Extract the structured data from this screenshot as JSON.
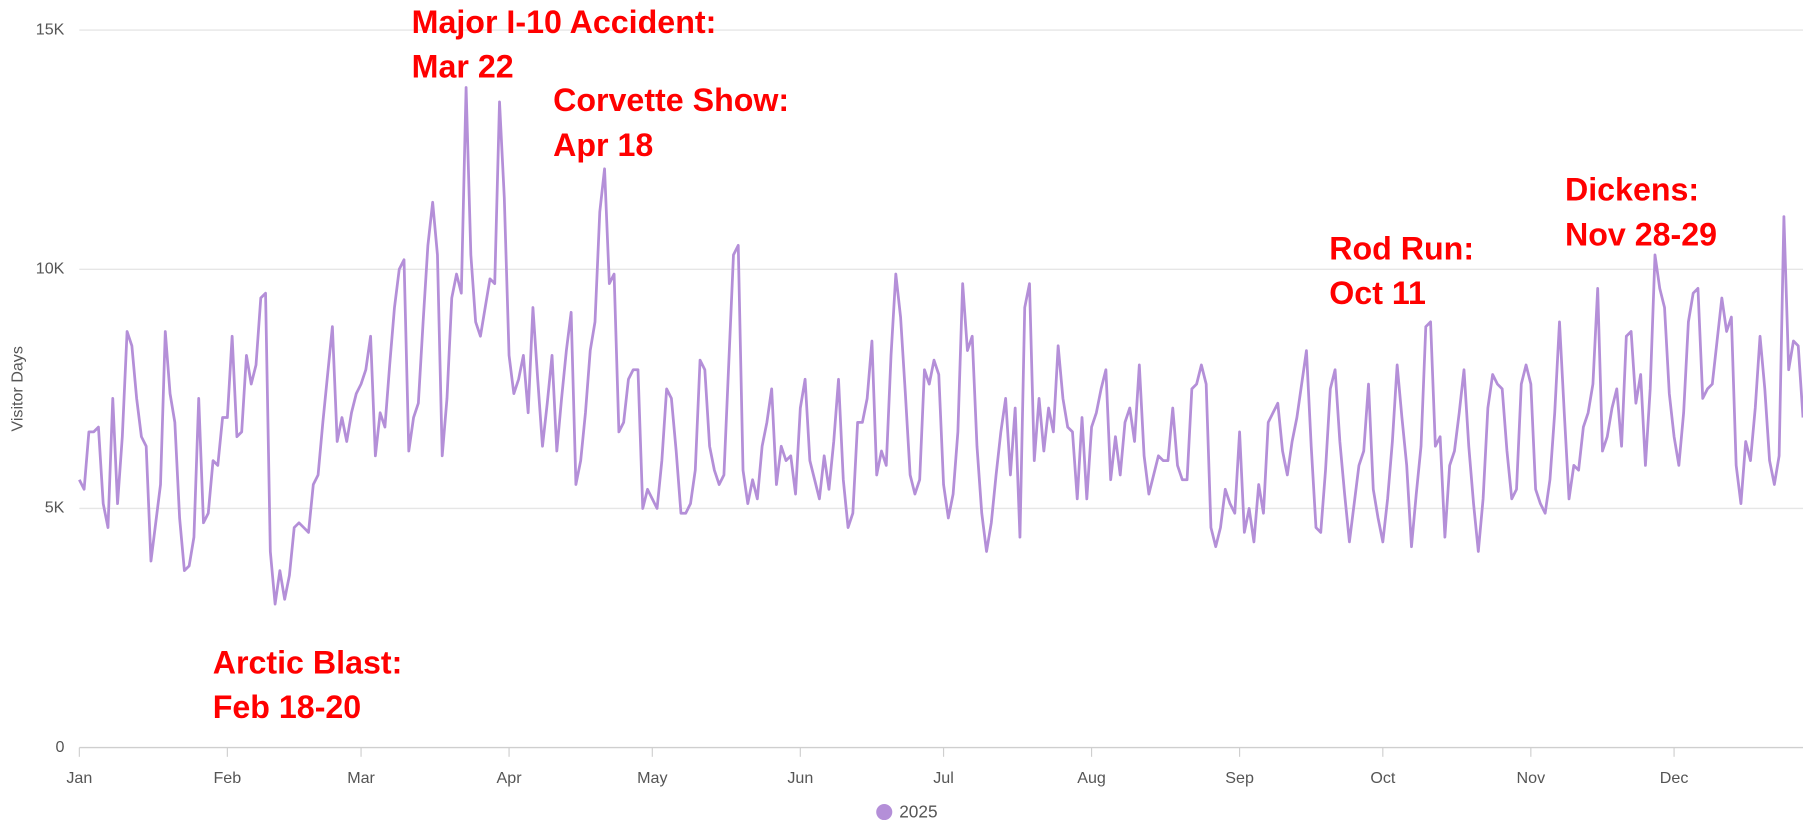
{
  "chart_data": {
    "type": "line",
    "y_label": "Visitor Days",
    "annotations": [
      {
        "lines": [
          "Major I-10 Accident:",
          "Mar 22"
        ]
      },
      {
        "lines": [
          "Corvette Show:",
          "Apr 18"
        ]
      },
      {
        "lines": [
          "Arctic Blast:",
          "Feb 18-20"
        ]
      },
      {
        "lines": [
          "Rod Run:",
          "Oct 11"
        ]
      },
      {
        "lines": [
          "Dickens:",
          "Nov 28-29"
        ]
      }
    ],
    "xlim": [
      0,
      361
    ],
    "xticks": [
      {
        "value": 0,
        "label": "Jan"
      },
      {
        "value": 31,
        "label": "Feb"
      },
      {
        "value": 59,
        "label": "Mar"
      },
      {
        "value": 90,
        "label": "Apr"
      },
      {
        "value": 120,
        "label": "May"
      },
      {
        "value": 151,
        "label": "Jun"
      },
      {
        "value": 181,
        "label": "Jul"
      },
      {
        "value": 212,
        "label": "Aug"
      },
      {
        "value": 243,
        "label": "Sep"
      },
      {
        "value": 273,
        "label": "Oct"
      },
      {
        "value": 304,
        "label": "Nov"
      },
      {
        "value": 334,
        "label": "Dec"
      }
    ],
    "ylim": [
      0,
      15000
    ],
    "yticks": [
      0,
      {
        "value": 5000,
        "label": "5K"
      },
      {
        "value": 10000,
        "label": "10K"
      },
      {
        "value": 15000,
        "label": "15K"
      }
    ],
    "grid": true,
    "legend": "bottom",
    "x": [
      0,
      1,
      2,
      3,
      4,
      5,
      6,
      7,
      8,
      9,
      10,
      11,
      12,
      13,
      14,
      15,
      16,
      17,
      18,
      19,
      20,
      21,
      22,
      23,
      24,
      25,
      26,
      27,
      28,
      29,
      30,
      31,
      32,
      33,
      34,
      35,
      36,
      37,
      38,
      39,
      40,
      41,
      42,
      43,
      44,
      45,
      46,
      47,
      48,
      49,
      50,
      51,
      52,
      53,
      54,
      55,
      56,
      57,
      58,
      59,
      60,
      61,
      62,
      63,
      64,
      65,
      66,
      67,
      68,
      69,
      70,
      71,
      72,
      73,
      74,
      75,
      76,
      77,
      78,
      79,
      80,
      81,
      82,
      83,
      84,
      85,
      86,
      87,
      88,
      89,
      90,
      91,
      92,
      93,
      94,
      95,
      96,
      97,
      98,
      99,
      100,
      101,
      102,
      103,
      104,
      105,
      106,
      107,
      108,
      109,
      110,
      111,
      112,
      113,
      114,
      115,
      116,
      117,
      118,
      119,
      120,
      121,
      122,
      123,
      124,
      125,
      126,
      127,
      128,
      129,
      130,
      131,
      132,
      133,
      134,
      135,
      136,
      137,
      138,
      139,
      140,
      141,
      142,
      143,
      144,
      145,
      146,
      147,
      148,
      149,
      150,
      151,
      152,
      153,
      154,
      155,
      156,
      157,
      158,
      159,
      160,
      161,
      162,
      163,
      164,
      165,
      166,
      167,
      168,
      169,
      170,
      171,
      172,
      173,
      174,
      175,
      176,
      177,
      178,
      179,
      180,
      181,
      182,
      183,
      184,
      185,
      186,
      187,
      188,
      189,
      190,
      191,
      192,
      193,
      194,
      195,
      196,
      197,
      198,
      199,
      200,
      201,
      202,
      203,
      204,
      205,
      206,
      207,
      208,
      209,
      210,
      211,
      212,
      213,
      214,
      215,
      216,
      217,
      218,
      219,
      220,
      221,
      222,
      223,
      224,
      225,
      226,
      227,
      228,
      229,
      230,
      231,
      232,
      233,
      234,
      235,
      236,
      237,
      238,
      239,
      240,
      241,
      242,
      243,
      244,
      245,
      246,
      247,
      248,
      249,
      250,
      251,
      252,
      253,
      254,
      255,
      256,
      257,
      258,
      259,
      260,
      261,
      262,
      263,
      264,
      265,
      266,
      267,
      268,
      269,
      270,
      271,
      272,
      273,
      274,
      275,
      276,
      277,
      278,
      279,
      280,
      281,
      282,
      283,
      284,
      285,
      286,
      287,
      288,
      289,
      290,
      291,
      292,
      293,
      294,
      295,
      296,
      297,
      298,
      299,
      300,
      301,
      302,
      303,
      304,
      305,
      306,
      307,
      308,
      309,
      310,
      311,
      312,
      313,
      314,
      315,
      316,
      317,
      318,
      319,
      320,
      321,
      322,
      323,
      324,
      325,
      326,
      327,
      328,
      329,
      330,
      331,
      332,
      333,
      334,
      335,
      336,
      337,
      338,
      339,
      340,
      341,
      342,
      343,
      344,
      345,
      346,
      347,
      348,
      349,
      350,
      351,
      352,
      353,
      354,
      355,
      356,
      357,
      358,
      359,
      360,
      361
    ],
    "series": [
      {
        "name": "2025",
        "color": "#b48fd8",
        "values": [
          5600,
          5400,
          6600,
          6600,
          6700,
          5100,
          4600,
          7300,
          5100,
          6500,
          8700,
          8400,
          7300,
          6500,
          6300,
          3900,
          4700,
          5500,
          8700,
          7400,
          6800,
          4800,
          3700,
          3800,
          4400,
          7300,
          4700,
          4900,
          6000,
          5900,
          6900,
          6900,
          8600,
          6500,
          6600,
          8200,
          7600,
          8000,
          9400,
          9500,
          4100,
          3000,
          3700,
          3100,
          3600,
          4600,
          4700,
          4600,
          4500,
          5500,
          5700,
          6800,
          7800,
          8800,
          6400,
          6900,
          6400,
          7000,
          7400,
          7600,
          7900,
          8600,
          6100,
          7000,
          6700,
          8000,
          9200,
          10000,
          10200,
          6200,
          6900,
          7200,
          8900,
          10500,
          11400,
          10300,
          6100,
          7300,
          9400,
          9900,
          9500,
          13800,
          10300,
          8900,
          8600,
          9200,
          9800,
          9700,
          13500,
          11500,
          8200,
          7400,
          7700,
          8200,
          7000,
          9200,
          7700,
          6300,
          7200,
          8200,
          6200,
          7300,
          8300,
          9100,
          5500,
          6000,
          7000,
          8300,
          8900,
          11200,
          12100,
          9700,
          9900,
          6600,
          6800,
          7700,
          7900,
          7900,
          5000,
          5400,
          5200,
          5000,
          6000,
          7500,
          7300,
          6200,
          4900,
          4900,
          5100,
          5800,
          8100,
          7900,
          6300,
          5800,
          5500,
          5700,
          8000,
          10300,
          10500,
          5800,
          5100,
          5600,
          5200,
          6300,
          6800,
          7500,
          5500,
          6300,
          6000,
          6100,
          5300,
          7100,
          7700,
          6000,
          5600,
          5200,
          6100,
          5400,
          6400,
          7700,
          5600,
          4600,
          4900,
          6800,
          6800,
          7300,
          8500,
          5700,
          6200,
          5900,
          8200,
          9900,
          9000,
          7400,
          5700,
          5300,
          5600,
          7900,
          7600,
          8100,
          7800,
          5500,
          4800,
          5300,
          6600,
          9700,
          8300,
          8600,
          6300,
          4900,
          4100,
          4700,
          5700,
          6600,
          7300,
          5700,
          7100,
          4400,
          9200,
          9700,
          6000,
          7300,
          6200,
          7100,
          6600,
          8400,
          7300,
          6700,
          6600,
          5200,
          6900,
          5200,
          6700,
          7000,
          7500,
          7900,
          5600,
          6500,
          5700,
          6800,
          7100,
          6400,
          8000,
          6100,
          5300,
          5700,
          6100,
          6000,
          6000,
          7100,
          5900,
          5600,
          5600,
          7500,
          7600,
          8000,
          7600,
          4600,
          4200,
          4600,
          5400,
          5100,
          4900,
          6600,
          4500,
          5000,
          4300,
          5500,
          4900,
          6800,
          7000,
          7200,
          6200,
          5700,
          6400,
          6900,
          7600,
          8300,
          6300,
          4600,
          4500,
          5800,
          7500,
          7900,
          6400,
          5300,
          4300,
          5100,
          5900,
          6200,
          7600,
          5400,
          4800,
          4300,
          5200,
          6400,
          8000,
          6900,
          5900,
          4200,
          5300,
          6300,
          8800,
          8900,
          6300,
          6500,
          4400,
          5900,
          6200,
          7000,
          7900,
          6300,
          5100,
          4100,
          5200,
          7100,
          7800,
          7600,
          7500,
          6200,
          5200,
          5400,
          7600,
          8000,
          7600,
          5400,
          5100,
          4900,
          5600,
          7000,
          8900,
          7000,
          5200,
          5900,
          5800,
          6700,
          7000,
          7600,
          9600,
          6200,
          6500,
          7100,
          7500,
          6300,
          8600,
          8700,
          7200,
          7800,
          5900,
          7500,
          10300,
          9600,
          9200,
          7400,
          6500,
          5900,
          7000,
          8900,
          9500,
          9600,
          7300,
          7500,
          7600,
          8500,
          9400,
          8700,
          9000,
          5900,
          5100,
          6400,
          6000,
          7100,
          8600,
          7500,
          6000,
          5500,
          6100,
          11100,
          7900,
          8500,
          8400,
          6900
        ]
      }
    ]
  }
}
